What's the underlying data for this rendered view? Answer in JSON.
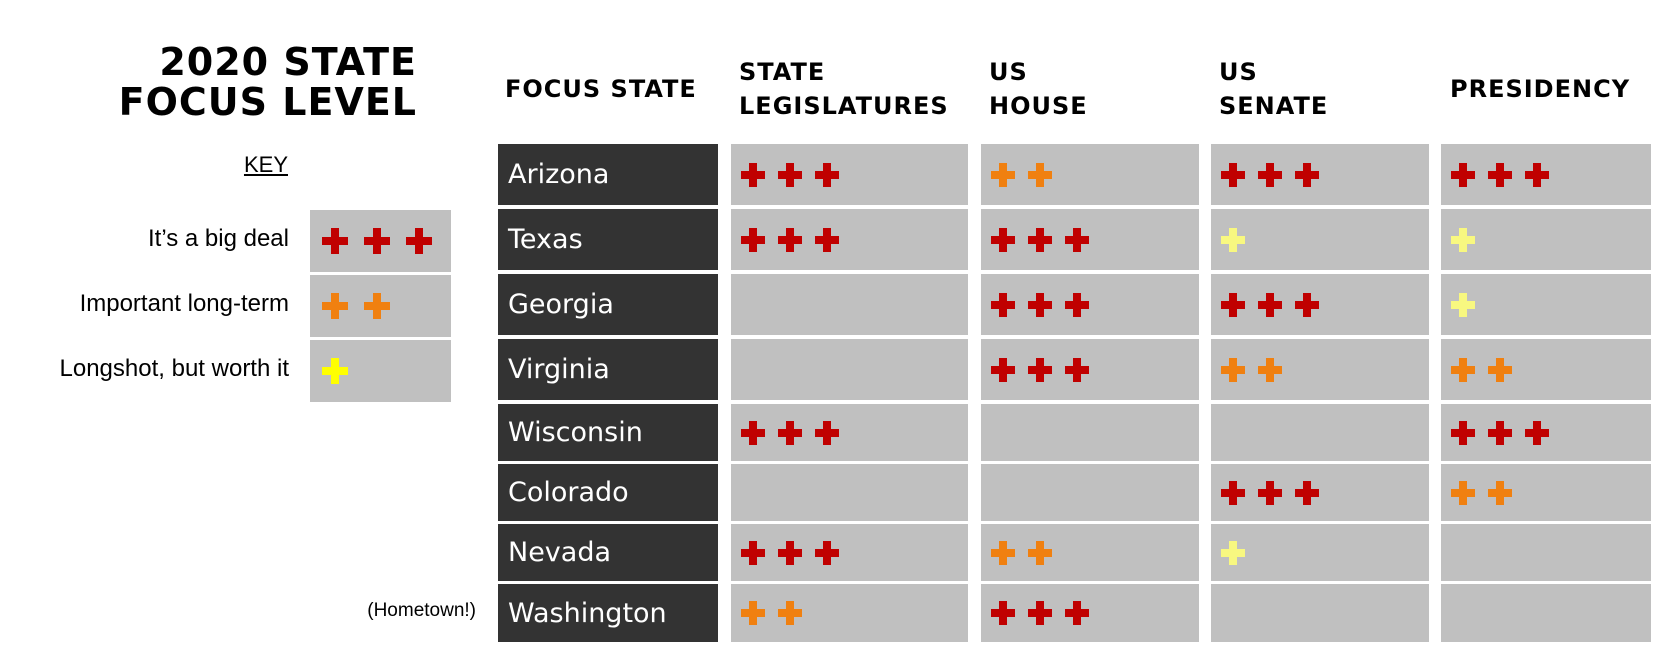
{
  "title": {
    "line1": "2020 STATE",
    "line2": "FOCUS LEVEL"
  },
  "key": {
    "label": "KEY",
    "items": [
      {
        "desc": "It’s a big deal",
        "level": 3
      },
      {
        "desc": "Important long-term",
        "level": 2
      },
      {
        "desc": "Longshot, but worth it",
        "level": 1
      }
    ]
  },
  "note": "(Hometown!)",
  "columns": {
    "focus_state": "FOCUS STATE",
    "state_leg": [
      "STATE",
      "LEGISLATURES"
    ],
    "us_house": [
      "US",
      "HOUSE"
    ],
    "us_senate": [
      "US",
      "SENATE"
    ],
    "presidency": "PRESIDENCY"
  },
  "colors": {
    "big_deal": "#c00000",
    "important": "#f08010",
    "longshot": "#f8f880",
    "cell_bg": "#c0c0c0",
    "state_bg": "#333333"
  },
  "rows": [
    {
      "state": "Arizona",
      "levels": [
        3,
        2,
        3,
        3
      ]
    },
    {
      "state": "Texas",
      "levels": [
        3,
        3,
        1,
        1
      ]
    },
    {
      "state": "Georgia",
      "levels": [
        0,
        3,
        3,
        1
      ]
    },
    {
      "state": "Virginia",
      "levels": [
        0,
        3,
        2,
        2
      ]
    },
    {
      "state": "Wisconsin",
      "levels": [
        3,
        0,
        0,
        3
      ]
    },
    {
      "state": "Colorado",
      "levels": [
        0,
        0,
        3,
        2
      ]
    },
    {
      "state": "Nevada",
      "levels": [
        3,
        2,
        1,
        0
      ]
    },
    {
      "state": "Washington",
      "levels": [
        2,
        3,
        0,
        0
      ]
    }
  ]
}
